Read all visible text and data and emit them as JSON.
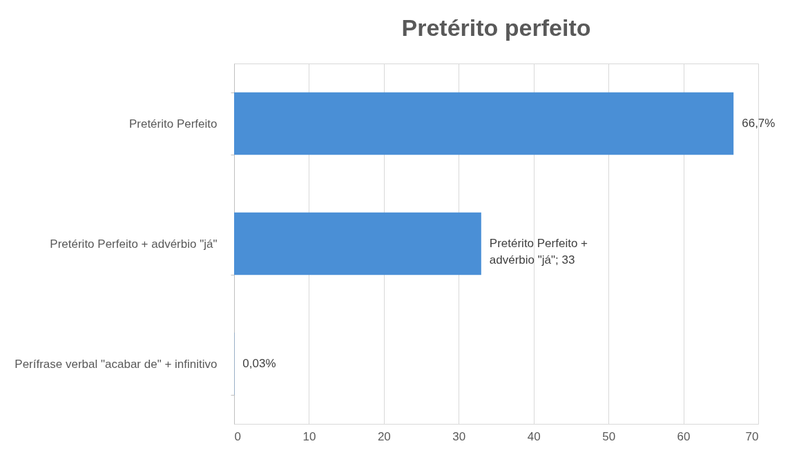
{
  "chart_data": {
    "type": "bar",
    "orientation": "horizontal",
    "title": "Pretérito perfeito",
    "categories": [
      "Pretérito Perfeito",
      "Pretérito Perfeito + advérbio \"já\"",
      "Perífrase verbal \"acabar de\" + infinitivo"
    ],
    "values": [
      66.7,
      33,
      0.03
    ],
    "value_labels": [
      "66,7%",
      "Pretérito Perfeito + advérbio \"já\"; 33",
      "0,03%"
    ],
    "color": "#4a8fd6",
    "xlim": [
      0,
      70
    ],
    "xticks": [
      0,
      10,
      20,
      30,
      40,
      50,
      60,
      70
    ],
    "grid": "x"
  }
}
